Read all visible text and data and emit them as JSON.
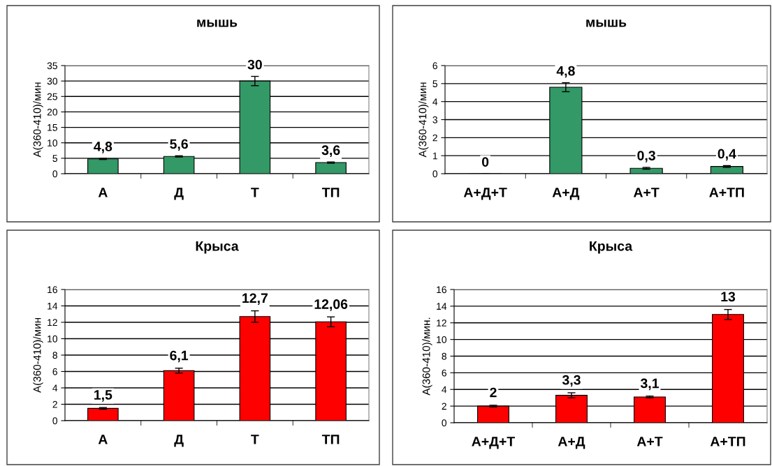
{
  "chart_data": [
    {
      "type": "bar",
      "title": "мышь",
      "ylabel": "А(360-410)/мин",
      "categories": [
        "А",
        "Д",
        "Т",
        "ТП"
      ],
      "values": [
        4.8,
        5.6,
        30,
        3.6
      ],
      "errors": [
        0.2,
        0.2,
        1.5,
        0.2
      ],
      "value_labels": [
        "4,8",
        "5,6",
        "30",
        "3,6"
      ],
      "color": "#339966",
      "ylim": [
        0,
        35
      ],
      "yticks": [
        0,
        5,
        10,
        15,
        20,
        25,
        30,
        35
      ],
      "grid": "y"
    },
    {
      "type": "bar",
      "title": "мышь",
      "ylabel": "А(360-410)/мин",
      "categories": [
        "А+Д+Т",
        "А+Д",
        "А+Т",
        "А+ТП"
      ],
      "values": [
        0,
        4.8,
        0.3,
        0.4
      ],
      "errors": [
        null,
        0.25,
        0.05,
        0.05
      ],
      "value_labels": [
        "0",
        "4,8",
        "0,3",
        "0,4"
      ],
      "color": "#339966",
      "ylim": [
        0,
        6
      ],
      "yticks": [
        0,
        1,
        2,
        3,
        4,
        5,
        6
      ],
      "grid": "y"
    },
    {
      "type": "bar",
      "title": "Крыса",
      "ylabel": "А(360-410)/мин",
      "categories": [
        "А",
        "Д",
        "Т",
        "ТП"
      ],
      "values": [
        1.5,
        6.1,
        12.7,
        12.06
      ],
      "errors": [
        0.1,
        0.3,
        0.7,
        0.6
      ],
      "value_labels": [
        "1,5",
        "6,1",
        "12,7",
        "12,06"
      ],
      "color": "#ff0000",
      "ylim": [
        0,
        16
      ],
      "yticks": [
        0,
        2,
        4,
        6,
        8,
        10,
        12,
        14,
        16
      ],
      "grid": "y"
    },
    {
      "type": "bar",
      "title": "Крыса",
      "ylabel": "А(360-410)/мин.",
      "categories": [
        "А+Д+Т",
        "А+Д",
        "А+Т",
        "А+ТП"
      ],
      "values": [
        2,
        3.3,
        3.1,
        13
      ],
      "errors": [
        0.1,
        0.3,
        0.1,
        0.6
      ],
      "value_labels": [
        "2",
        "3,3",
        "3,1",
        "13"
      ],
      "color": "#ff0000",
      "ylim": [
        0,
        16
      ],
      "yticks": [
        0,
        2,
        4,
        6,
        8,
        10,
        12,
        14,
        16
      ],
      "grid": "y"
    }
  ]
}
